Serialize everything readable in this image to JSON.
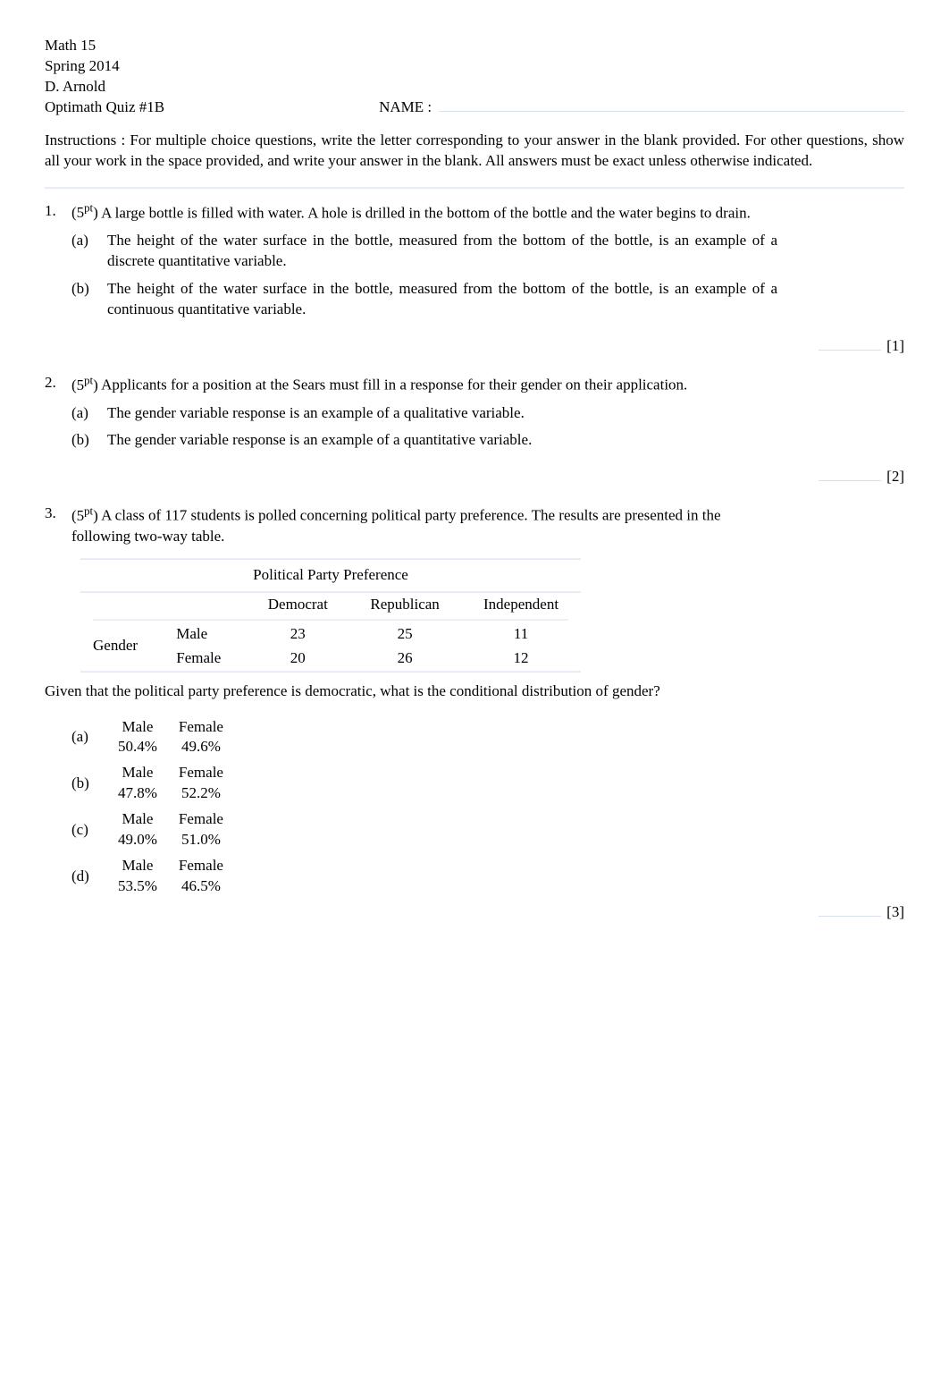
{
  "header": {
    "course": "Math 15",
    "term": "Spring 2014",
    "instructor": "D. Arnold",
    "quiz_title": "Optimath Quiz #1B",
    "name_label": "NAME  :"
  },
  "instructions": {
    "label": "Instructions",
    "text": ": For multiple choice questions, write the letter corresponding to your answer in the blank provided.  For other questions, show all your work in the space provided, and write your answer in the blank. All answers must be exact unless otherwise indicated."
  },
  "questions": [
    {
      "num": "1.",
      "pts_prefix": "(5",
      "pts_sup": "pt",
      "pts_suffix": ")",
      "text": " A large bottle is filled with water. A hole is drilled in the bottom of the bottle and the water begins to drain.",
      "subs": [
        {
          "label": "(a)",
          "text": "The height of the water surface in the bottle, measured from the bottom of the bottle, is an example of a  discrete  quantitative variable."
        },
        {
          "label": "(b)",
          "text": "The height of the water surface in the bottle, measured from the bottom of the bottle, is an example of a  continuous  quantitative variable."
        }
      ],
      "answer_tag": "[1]"
    },
    {
      "num": "2.",
      "pts_prefix": "(5",
      "pts_sup": "pt",
      "pts_suffix": ")",
      "text": " Applicants for a position at the Sears must fill in a response for their gender on their application.",
      "subs": [
        {
          "label": "(a)",
          "text": "The gender variable response is an example of a  qualitative  variable."
        },
        {
          "label": "(b)",
          "text": "The gender variable response is an example of a  quantitative  variable."
        }
      ],
      "answer_tag": "[2]"
    },
    {
      "num": "3.",
      "pts_prefix": "(5",
      "pts_sup": "pt",
      "pts_suffix": ")",
      "text": " A class of 117 students is polled concerning political party preference. The results are presented in the following two-way table.",
      "answer_tag": "[3]"
    }
  ],
  "table": {
    "title": "Political Party Preference",
    "col_headers": [
      "Democrat",
      "Republican",
      "Independent"
    ],
    "row_group_label": "Gender",
    "rows": [
      {
        "label": "Male",
        "cells": [
          "23",
          "25",
          "11"
        ]
      },
      {
        "label": "Female",
        "cells": [
          "20",
          "26",
          "12"
        ]
      }
    ]
  },
  "given": "Given that the political party preference is democratic, what is the conditional distribution of gender?",
  "dist_options": [
    {
      "label": "(a)",
      "headers": [
        "Male",
        "Female"
      ],
      "values": [
        "50.4%",
        "49.6%"
      ]
    },
    {
      "label": "(b)",
      "headers": [
        "Male",
        "Female"
      ],
      "values": [
        "47.8%",
        "52.2%"
      ]
    },
    {
      "label": "(c)",
      "headers": [
        "Male",
        "Female"
      ],
      "values": [
        "49.0%",
        "51.0%"
      ]
    },
    {
      "label": "(d)",
      "headers": [
        "Male",
        "Female"
      ],
      "values": [
        "53.5%",
        "46.5%"
      ]
    }
  ]
}
